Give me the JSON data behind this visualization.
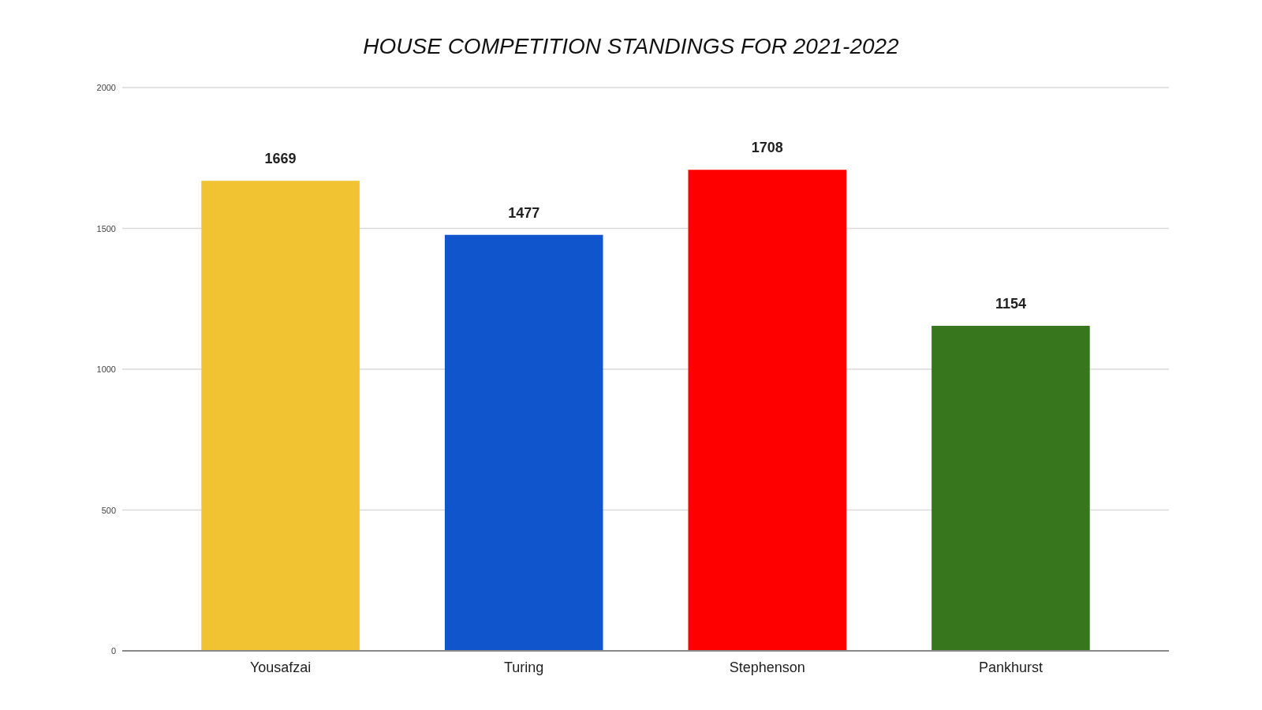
{
  "chart_data": {
    "type": "bar",
    "title": "HOUSE COMPETITION STANDINGS FOR 2021-2022",
    "categories": [
      "Yousafzai",
      "Turing",
      "Stephenson",
      "Pankhurst"
    ],
    "values": [
      1669,
      1477,
      1708,
      1154
    ],
    "colors": [
      "#f1c232",
      "#1155cc",
      "#ff0000",
      "#38761d"
    ],
    "ylim": [
      0,
      2000
    ],
    "yticks": [
      0,
      500,
      1000,
      1500,
      2000
    ],
    "grid": true,
    "data_labels": true
  }
}
